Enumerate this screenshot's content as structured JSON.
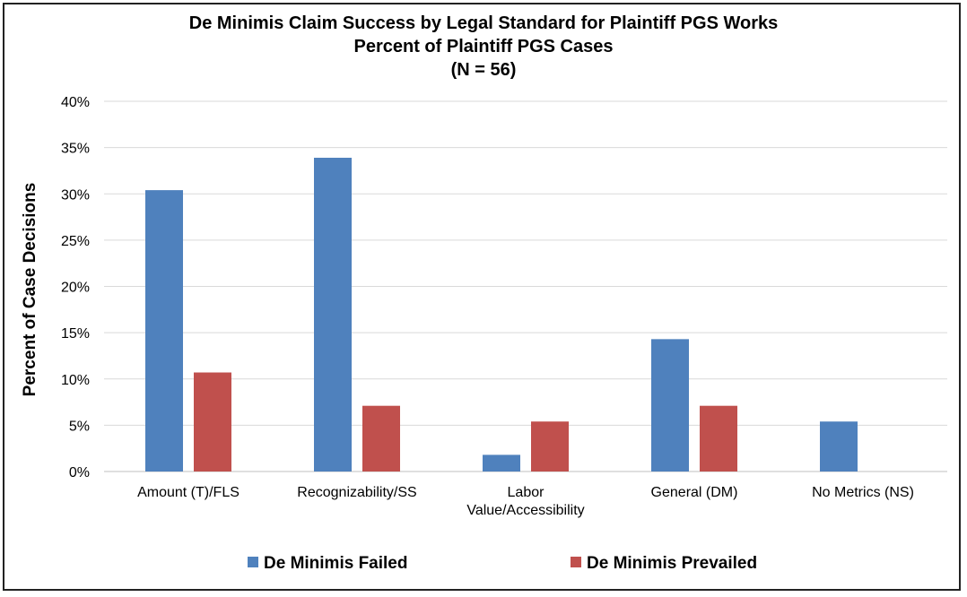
{
  "chart_data": {
    "type": "bar",
    "title": "De Minimis Claim Success by Legal Standard for Plaintiff PGS Works",
    "subtitle": "Percent of Plaintiff PGS Cases",
    "subtitle2": "(N = 56)",
    "xlabel": "",
    "ylabel": "Percent of Case Decisions",
    "ylim": [
      0,
      40
    ],
    "yticks": [
      "0%",
      "5%",
      "10%",
      "15%",
      "20%",
      "25%",
      "30%",
      "35%",
      "40%"
    ],
    "ytick_values": [
      0,
      5,
      10,
      15,
      20,
      25,
      30,
      35,
      40
    ],
    "categories": [
      [
        "Amount (T)/FLS"
      ],
      [
        "Recognizability/SS"
      ],
      [
        "Labor",
        "Value/Accessibility"
      ],
      [
        "General (DM)"
      ],
      [
        "No Metrics (NS)"
      ]
    ],
    "series": [
      {
        "name": "De Minimis Failed",
        "color": "#4f81bd",
        "values": [
          30.4,
          33.9,
          1.8,
          14.3,
          5.4
        ]
      },
      {
        "name": "De Minimis Prevailed",
        "color": "#c0504d",
        "values": [
          10.7,
          7.1,
          5.4,
          7.1,
          0
        ]
      }
    ],
    "grid": true,
    "legend": "bottom"
  }
}
